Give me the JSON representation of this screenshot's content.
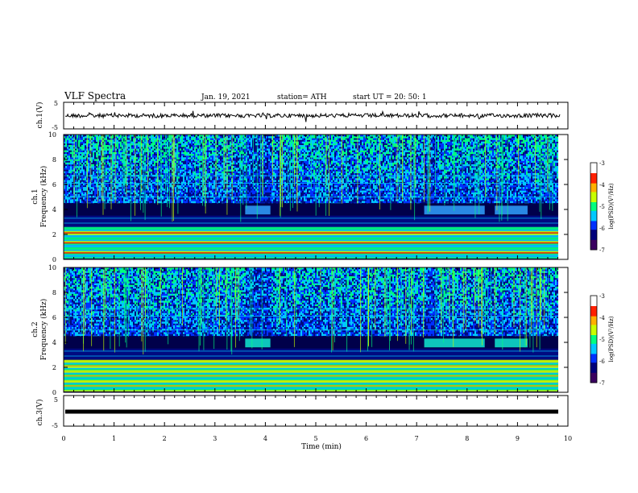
{
  "header": {
    "title": "VLF Spectra",
    "date": "Jan. 19, 2021",
    "station": "station= ATH",
    "start": "start UT =  20: 50: 1"
  },
  "chart_data": [
    {
      "type": "line",
      "panel": "ch1-waveform",
      "ylabel": "ch.1(V)",
      "ylim": [
        -5,
        5
      ],
      "yticks": [
        "5",
        "-5"
      ],
      "xlim": [
        0,
        10
      ],
      "description_value_level": 0,
      "series": [
        {
          "values_note": "noisy waveform around 0 V, amplitude about 1 V"
        }
      ]
    },
    {
      "type": "heatmap",
      "panel": "ch1-spectrogram",
      "ylabel": "ch.1",
      "ylabel2": "Frequency (kHz)",
      "ylim": [
        0,
        10
      ],
      "yticks": [
        "0",
        "2",
        "4",
        "6",
        "8",
        "10"
      ],
      "xlim": [
        0,
        10
      ],
      "colorbar": {
        "label": "log(PSD)(V²/Hz)",
        "range": [
          -7,
          -3
        ],
        "ticks": [
          "-3",
          "-4",
          "-5",
          "-6",
          "-7"
        ]
      },
      "features": [
        {
          "kind": "enhanced-band",
          "x": [
            3.6,
            4.1
          ],
          "y": [
            3.6,
            4.3
          ]
        },
        {
          "kind": "enhanced-band",
          "x": [
            7.15,
            8.35
          ],
          "y": [
            3.6,
            4.3
          ]
        },
        {
          "kind": "enhanced-band",
          "x": [
            8.55,
            9.2
          ],
          "y": [
            3.6,
            4.3
          ]
        }
      ]
    },
    {
      "type": "heatmap",
      "panel": "ch2-spectrogram",
      "ylabel": "ch.2",
      "ylabel2": "Frequency (kHz)",
      "ylim": [
        0,
        10
      ],
      "yticks": [
        "0",
        "2",
        "4",
        "6",
        "8",
        "10"
      ],
      "xlim": [
        0,
        10
      ],
      "colorbar": {
        "label": "log(PSD)(V²/Hz)",
        "range": [
          -7,
          -3
        ],
        "ticks": [
          "-3",
          "-4",
          "-5",
          "-6",
          "-7"
        ]
      },
      "features": [
        {
          "kind": "enhanced-band",
          "x": [
            3.6,
            4.1
          ],
          "y": [
            3.6,
            4.3
          ]
        },
        {
          "kind": "enhanced-band",
          "x": [
            7.15,
            8.35
          ],
          "y": [
            3.6,
            4.3
          ]
        },
        {
          "kind": "enhanced-band",
          "x": [
            8.55,
            9.2
          ],
          "y": [
            3.6,
            4.3
          ]
        }
      ]
    },
    {
      "type": "line",
      "panel": "ch3-waveform",
      "ylabel": "ch.3(V)",
      "ylim": [
        -5,
        5
      ],
      "yticks": [
        "5",
        "-5"
      ],
      "xlim": [
        0,
        10
      ],
      "series": [
        {
          "values_note": "constant near 0 V"
        }
      ]
    }
  ],
  "xaxis": {
    "label": "Time (min)",
    "ticks": [
      "0",
      "1",
      "2",
      "3",
      "4",
      "5",
      "6",
      "7",
      "8",
      "9",
      "10"
    ]
  },
  "colors": {
    "colormap": [
      "#3a0060",
      "#00007a",
      "#0030ff",
      "#00c8ff",
      "#00ff80",
      "#c8ff00",
      "#ffb000",
      "#ff2000",
      "#ffffff"
    ]
  }
}
